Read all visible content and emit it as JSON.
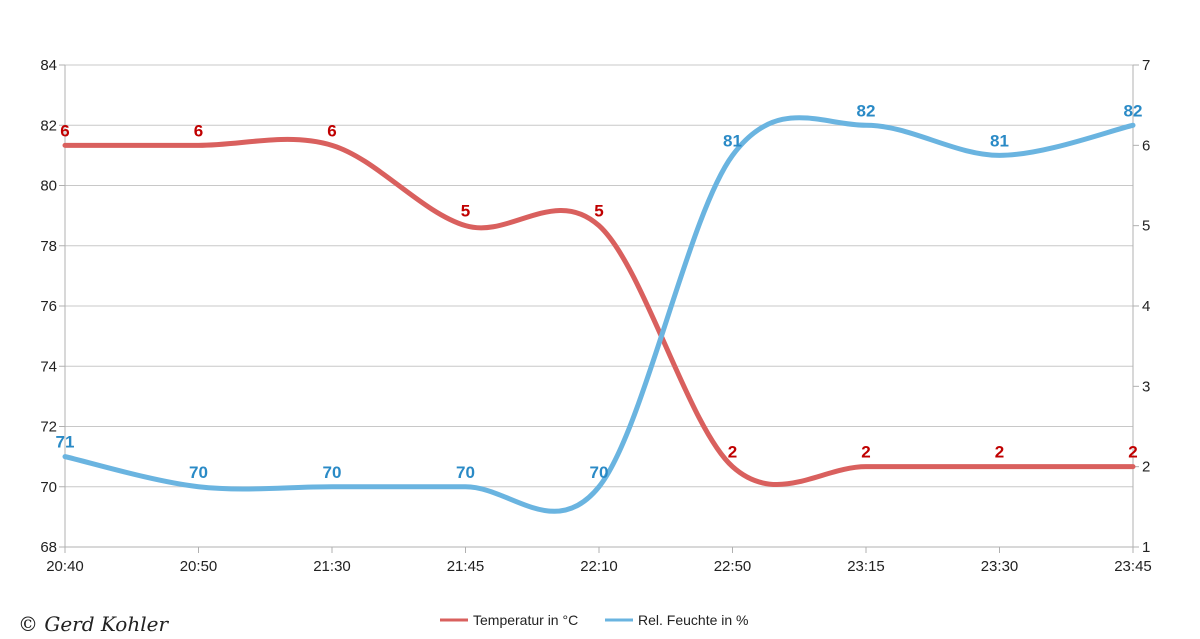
{
  "chart_data": {
    "type": "line",
    "title": "",
    "categories": [
      "20:40",
      "20:50",
      "21:30",
      "21:45",
      "22:10",
      "22:50",
      "23:15",
      "23:30",
      "23:45"
    ],
    "y_left": {
      "min": 68,
      "max": 84,
      "step": 2,
      "ticks": [
        "68",
        "70",
        "72",
        "74",
        "76",
        "78",
        "80",
        "82",
        "84"
      ]
    },
    "y_right": {
      "min": 1,
      "max": 7,
      "step": 1,
      "ticks": [
        "1",
        "2",
        "3",
        "4",
        "5",
        "6",
        "7"
      ]
    },
    "grid": true,
    "legend_position": "bottom",
    "series": [
      {
        "name": "Temperatur in °C",
        "axis": "right",
        "color": "#d9605e",
        "label_color": "#c00000",
        "values": [
          6,
          6,
          6,
          5,
          5,
          2,
          2,
          2,
          2
        ],
        "labels": [
          "6",
          "6",
          "6",
          "5",
          "5",
          "2",
          "2",
          "2",
          "2"
        ]
      },
      {
        "name": "Rel. Feuchte in %",
        "axis": "left",
        "color": "#6ab4e0",
        "label_color": "#2a8ac6",
        "values": [
          71,
          70,
          70,
          70,
          70,
          81,
          82,
          81,
          82
        ],
        "labels": [
          "71",
          "70",
          "70",
          "70",
          "70",
          "81",
          "82",
          "81",
          "82"
        ]
      }
    ]
  },
  "copyright": "© Gerd Kohler"
}
